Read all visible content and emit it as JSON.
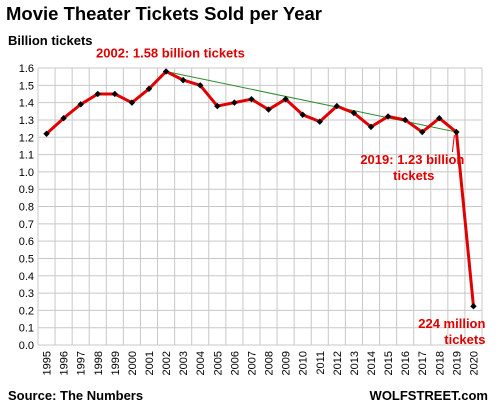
{
  "title": "Movie Theater Tickets Sold per Year",
  "ylabel": "Billion tickets",
  "source": "Source: The Numbers",
  "brand": "WOLFSTREET.com",
  "colors": {
    "line": "#e00000",
    "marker": "#000000",
    "trend": "#2e8b2e",
    "grid": "#c8c8c8",
    "annotation": "#e00000"
  },
  "chart_data": {
    "type": "line",
    "x": [
      "1995",
      "1996",
      "1997",
      "1998",
      "1999",
      "2000",
      "2001",
      "2002",
      "2003",
      "2004",
      "2005",
      "2006",
      "2007",
      "2008",
      "2009",
      "2010",
      "2011",
      "2012",
      "2013",
      "2014",
      "2015",
      "2016",
      "2017",
      "2018",
      "2019",
      "2020"
    ],
    "series": [
      {
        "values": [
          1.22,
          1.31,
          1.39,
          1.45,
          1.45,
          1.4,
          1.48,
          1.58,
          1.53,
          1.5,
          1.38,
          1.4,
          1.42,
          1.36,
          1.42,
          1.33,
          1.29,
          1.38,
          1.34,
          1.26,
          1.32,
          1.3,
          1.23,
          1.31,
          1.23,
          0.224
        ]
      }
    ],
    "trendline": {
      "from": "2002",
      "to": "2019",
      "color": "green"
    },
    "ylim": [
      0,
      1.6
    ],
    "yticks": [
      "0.0",
      "0.1",
      "0.2",
      "0.3",
      "0.4",
      "0.5",
      "0.6",
      "0.7",
      "0.8",
      "0.9",
      "1.0",
      "1.1",
      "1.2",
      "1.3",
      "1.4",
      "1.5",
      "1.6"
    ],
    "grid": true,
    "markers": "diamond",
    "annotations": [
      {
        "lines": [
          "2002: 1.58 billion tickets"
        ],
        "x": "2002",
        "y": 1.58
      },
      {
        "lines": [
          "2019: 1.23 billion",
          "tickets"
        ],
        "x": "2019",
        "y": 1.23
      },
      {
        "lines": [
          "224 million",
          "tickets"
        ],
        "x": "2020",
        "y": 0.224
      }
    ]
  }
}
